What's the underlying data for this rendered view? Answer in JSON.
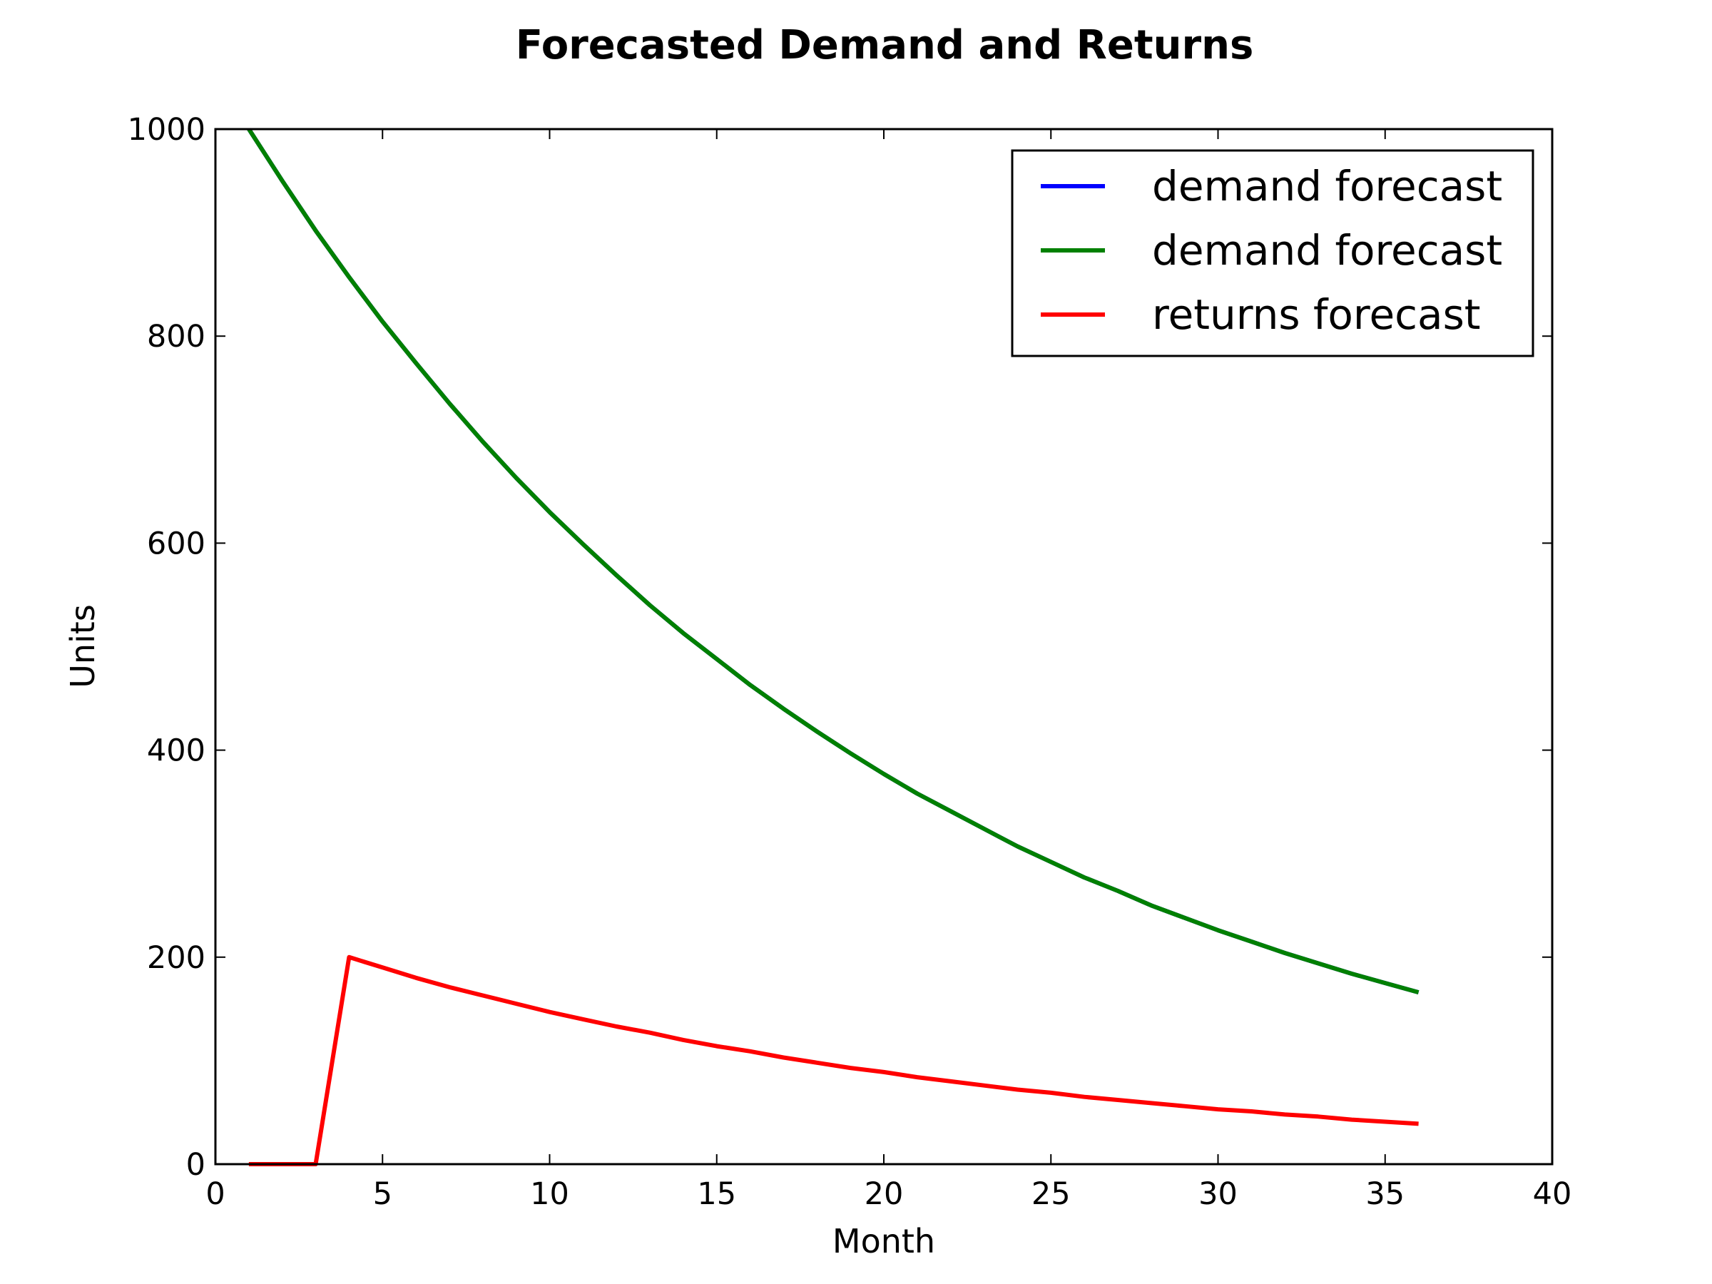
{
  "chart_data": {
    "type": "line",
    "title": "Forecasted Demand and Returns",
    "xlabel": "Month",
    "ylabel": "Units",
    "xlim": [
      0,
      40
    ],
    "ylim": [
      0,
      1000
    ],
    "xticks": [
      "0",
      "5",
      "10",
      "15",
      "20",
      "25",
      "30",
      "35",
      "40"
    ],
    "yticks": [
      "0",
      "200",
      "400",
      "600",
      "800",
      "1000"
    ],
    "grid": false,
    "legend_position": "top-right",
    "x": [
      1,
      2,
      3,
      4,
      5,
      6,
      7,
      8,
      9,
      10,
      11,
      12,
      13,
      14,
      15,
      16,
      17,
      18,
      19,
      20,
      21,
      22,
      23,
      24,
      25,
      26,
      27,
      28,
      29,
      30,
      31,
      32,
      33,
      34,
      35,
      36
    ],
    "series": [
      {
        "name": "demand forecast",
        "color": "#0000ff",
        "values": [
          1000,
          950,
          902,
          857,
          814,
          774,
          735,
          698,
          663,
          630,
          599,
          569,
          540,
          513,
          488,
          463,
          440,
          418,
          397,
          377,
          358,
          341,
          324,
          307,
          292,
          277,
          264,
          250,
          238,
          226,
          215,
          204,
          194,
          184,
          175,
          166
        ]
      },
      {
        "name": "demand forecast",
        "color": "#008000",
        "values": [
          1000,
          950,
          902,
          857,
          814,
          774,
          735,
          698,
          663,
          630,
          599,
          569,
          540,
          513,
          488,
          463,
          440,
          418,
          397,
          377,
          358,
          341,
          324,
          307,
          292,
          277,
          264,
          250,
          238,
          226,
          215,
          204,
          194,
          184,
          175,
          166
        ]
      },
      {
        "name": "returns forecast",
        "color": "#ff0000",
        "values": [
          0,
          0,
          0,
          200,
          190,
          180,
          171,
          163,
          155,
          147,
          140,
          133,
          127,
          120,
          114,
          109,
          103,
          98,
          93,
          89,
          84,
          80,
          76,
          72,
          69,
          65,
          62,
          59,
          56,
          53,
          51,
          48,
          46,
          43,
          41,
          39
        ]
      }
    ]
  }
}
